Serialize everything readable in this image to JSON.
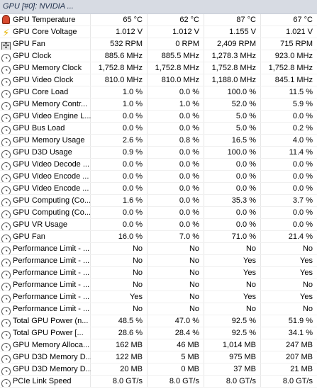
{
  "header": {
    "title": "GPU [#0]: NVIDIA ..."
  },
  "rows": [
    {
      "icon": "thermometer-icon",
      "label": "GPU Temperature",
      "values": [
        "65 °C",
        "62 °C",
        "87 °C",
        "67 °C"
      ]
    },
    {
      "icon": "lightning-icon",
      "label": "GPU Core Voltage",
      "values": [
        "1.012 V",
        "1.012 V",
        "1.155 V",
        "1.021 V"
      ]
    },
    {
      "icon": "fan-icon",
      "label": "GPU Fan",
      "values": [
        "532 RPM",
        "0 RPM",
        "2,409 RPM",
        "715 RPM"
      ]
    },
    {
      "icon": "gauge-icon",
      "label": "GPU Clock",
      "values": [
        "885.6 MHz",
        "885.5 MHz",
        "1,278.3 MHz",
        "923.0 MHz"
      ]
    },
    {
      "icon": "gauge-icon",
      "label": "GPU Memory Clock",
      "values": [
        "1,752.8 MHz",
        "1,752.8 MHz",
        "1,752.8 MHz",
        "1,752.8 MHz"
      ]
    },
    {
      "icon": "gauge-icon",
      "label": "GPU Video Clock",
      "values": [
        "810.0 MHz",
        "810.0 MHz",
        "1,188.0 MHz",
        "845.1 MHz"
      ]
    },
    {
      "icon": "gauge-icon",
      "label": "GPU Core Load",
      "values": [
        "1.0 %",
        "0.0 %",
        "100.0 %",
        "11.5 %"
      ]
    },
    {
      "icon": "gauge-icon",
      "label": "GPU Memory Contr...",
      "values": [
        "1.0 %",
        "1.0 %",
        "52.0 %",
        "5.9 %"
      ]
    },
    {
      "icon": "gauge-icon",
      "label": "GPU Video Engine L...",
      "values": [
        "0.0 %",
        "0.0 %",
        "5.0 %",
        "0.0 %"
      ]
    },
    {
      "icon": "gauge-icon",
      "label": "GPU Bus Load",
      "values": [
        "0.0 %",
        "0.0 %",
        "5.0 %",
        "0.2 %"
      ]
    },
    {
      "icon": "gauge-icon",
      "label": "GPU Memory Usage",
      "values": [
        "2.6 %",
        "0.8 %",
        "16.5 %",
        "4.0 %"
      ]
    },
    {
      "icon": "gauge-icon",
      "label": "GPU D3D Usage",
      "values": [
        "0.9 %",
        "0.0 %",
        "100.0 %",
        "11.4 %"
      ]
    },
    {
      "icon": "gauge-icon",
      "label": "GPU Video Decode ...",
      "values": [
        "0.0 %",
        "0.0 %",
        "0.0 %",
        "0.0 %"
      ]
    },
    {
      "icon": "gauge-icon",
      "label": "GPU Video Encode ...",
      "values": [
        "0.0 %",
        "0.0 %",
        "0.0 %",
        "0.0 %"
      ]
    },
    {
      "icon": "gauge-icon",
      "label": "GPU Video Encode ...",
      "values": [
        "0.0 %",
        "0.0 %",
        "0.0 %",
        "0.0 %"
      ]
    },
    {
      "icon": "gauge-icon",
      "label": "GPU Computing (Co...",
      "values": [
        "1.6 %",
        "0.0 %",
        "35.3 %",
        "3.7 %"
      ]
    },
    {
      "icon": "gauge-icon",
      "label": "GPU Computing (Co...",
      "values": [
        "0.0 %",
        "0.0 %",
        "0.0 %",
        "0.0 %"
      ]
    },
    {
      "icon": "gauge-icon",
      "label": "GPU VR Usage",
      "values": [
        "0.0 %",
        "0.0 %",
        "0.0 %",
        "0.0 %"
      ]
    },
    {
      "icon": "gauge-icon",
      "label": "GPU Fan",
      "values": [
        "16.0 %",
        "7.0 %",
        "71.0 %",
        "21.4 %"
      ]
    },
    {
      "icon": "gauge-icon",
      "label": "Performance Limit - ...",
      "values": [
        "No",
        "No",
        "No",
        "No"
      ]
    },
    {
      "icon": "gauge-icon",
      "label": "Performance Limit - ...",
      "values": [
        "No",
        "No",
        "Yes",
        "Yes"
      ]
    },
    {
      "icon": "gauge-icon",
      "label": "Performance Limit - ...",
      "values": [
        "No",
        "No",
        "Yes",
        "Yes"
      ]
    },
    {
      "icon": "gauge-icon",
      "label": "Performance Limit - ...",
      "values": [
        "No",
        "No",
        "No",
        "No"
      ]
    },
    {
      "icon": "gauge-icon",
      "label": "Performance Limit - ...",
      "values": [
        "Yes",
        "No",
        "Yes",
        "Yes"
      ]
    },
    {
      "icon": "gauge-icon",
      "label": "Performance Limit - ...",
      "values": [
        "No",
        "No",
        "No",
        "No"
      ]
    },
    {
      "icon": "gauge-icon",
      "label": "Total GPU Power (n...",
      "values": [
        "48.5 %",
        "47.0 %",
        "92.5 %",
        "51.9 %"
      ]
    },
    {
      "icon": "gauge-icon",
      "label": "Total GPU Power [...",
      "values": [
        "28.6 %",
        "28.4 %",
        "92.5 %",
        "34.1 %"
      ]
    },
    {
      "icon": "gauge-icon",
      "label": "GPU Memory Alloca...",
      "values": [
        "162 MB",
        "46 MB",
        "1,014 MB",
        "247 MB"
      ]
    },
    {
      "icon": "gauge-icon",
      "label": "GPU D3D Memory D...",
      "values": [
        "122 MB",
        "5 MB",
        "975 MB",
        "207 MB"
      ]
    },
    {
      "icon": "gauge-icon",
      "label": "GPU D3D Memory D...",
      "values": [
        "20 MB",
        "0 MB",
        "37 MB",
        "21 MB"
      ]
    },
    {
      "icon": "gauge-icon",
      "label": "PCIe Link Speed",
      "values": [
        "8.0 GT/s",
        "8.0 GT/s",
        "8.0 GT/s",
        "8.0 GT/s"
      ]
    }
  ]
}
